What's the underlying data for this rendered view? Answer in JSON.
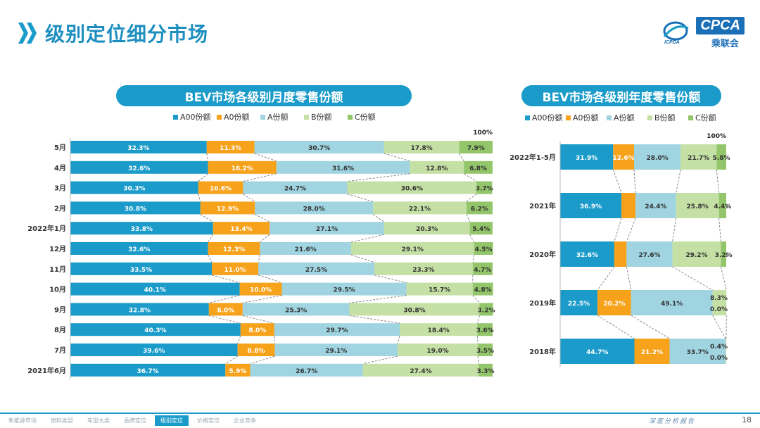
{
  "page": {
    "title": "级别定位细分市场",
    "logo_text": "CPCA",
    "logo_sub": "乘联会",
    "logo_sub2": "ICPDA",
    "report_label": "深度分析报告",
    "page_number": "18"
  },
  "nav": {
    "items": [
      "新能源市场",
      "燃料类型",
      "车型大类",
      "品牌定位",
      "级别定位",
      "价格定位",
      "企业竞争"
    ],
    "active_index": 4
  },
  "colors": {
    "title_blue": "#1d8fbf",
    "accent": "#1a9bc9",
    "series": [
      "#1a9bc9",
      "#f7a21b",
      "#9fd4e0",
      "#c5e0a5",
      "#93c66a"
    ]
  },
  "chart_data": [
    {
      "type": "bar",
      "orientation": "horizontal",
      "stacked": "percent",
      "title": "BEV市场各级别月度零售份额",
      "legend": [
        "A00份额",
        "A0份额",
        "A份额",
        "B份额",
        "C份额"
      ],
      "legend_position": "top",
      "total_label": "100%",
      "categories": [
        "5月",
        "4月",
        "3月",
        "2月",
        "2022年1月",
        "12月",
        "11月",
        "10月",
        "9月",
        "8月",
        "7月",
        "2021年6月"
      ],
      "series": [
        {
          "name": "A00份额",
          "values": [
            32.3,
            32.6,
            30.3,
            30.8,
            33.8,
            32.6,
            33.5,
            40.1,
            32.8,
            40.3,
            39.6,
            36.7
          ]
        },
        {
          "name": "A0份额",
          "values": [
            11.3,
            16.2,
            10.6,
            12.9,
            13.4,
            12.3,
            11.0,
            10.0,
            8.0,
            8.0,
            8.8,
            5.9
          ]
        },
        {
          "name": "A份额",
          "values": [
            30.7,
            31.6,
            24.7,
            28.0,
            27.1,
            21.6,
            27.5,
            29.5,
            25.3,
            29.7,
            29.1,
            26.7
          ]
        },
        {
          "name": "B份额",
          "values": [
            17.8,
            12.8,
            30.6,
            22.1,
            20.3,
            29.1,
            23.3,
            15.7,
            30.8,
            18.4,
            19.0,
            27.4
          ]
        },
        {
          "name": "C份额",
          "values": [
            7.9,
            6.8,
            3.7,
            6.2,
            5.4,
            4.5,
            4.7,
            4.8,
            3.2,
            3.6,
            3.5,
            3.3
          ]
        }
      ],
      "labels": [
        [
          "32.3%",
          "11.3%",
          "30.7%",
          "17.8%",
          "7.9%"
        ],
        [
          "32.6%",
          "16.2%",
          "31.6%",
          "12.8%",
          "6.8%"
        ],
        [
          "30.3%",
          "10.6%",
          "24.7%",
          "30.6%",
          "3.7%"
        ],
        [
          "30.8%",
          "12.9%",
          "28.0%",
          "22.1%",
          "6.2%"
        ],
        [
          "33.8%",
          "13.4%",
          "27.1%",
          "20.3%",
          "5.4%"
        ],
        [
          "32.6%",
          "12.3%",
          "21.6%",
          "29.1%",
          "4.5%"
        ],
        [
          "33.5%",
          "11.0%",
          "27.5%",
          "23.3%",
          "4.7%"
        ],
        [
          "40.1%",
          "10.0%",
          "29.5%",
          "15.7%",
          "4.8%"
        ],
        [
          "32.8%",
          "8.0%",
          "25.3%",
          "30.8%",
          "3.2%"
        ],
        [
          "40.3%",
          "8.0%",
          "29.7%",
          "18.4%",
          "3.6%"
        ],
        [
          "39.6%",
          "8.8%",
          "29.1%",
          "19.0%",
          "3.5%"
        ],
        [
          "36.7%",
          "5.9%",
          "26.7%",
          "27.4%",
          "3.3%"
        ]
      ]
    },
    {
      "type": "bar",
      "orientation": "horizontal",
      "stacked": "percent",
      "title": "BEV市场各级别年度零售份额",
      "legend": [
        "A00份额",
        "A0份额",
        "A份额",
        "B份额",
        "C份额"
      ],
      "legend_position": "top",
      "total_label": "100%",
      "categories": [
        "2022年1-5月",
        "2021年",
        "2020年",
        "2019年",
        "2018年"
      ],
      "series": [
        {
          "name": "A00份额",
          "values": [
            31.9,
            36.9,
            32.6,
            22.5,
            44.7
          ]
        },
        {
          "name": "A0份额",
          "values": [
            12.6,
            8.5,
            7.4,
            20.2,
            21.2
          ]
        },
        {
          "name": "A份额",
          "values": [
            28.0,
            24.4,
            27.6,
            49.1,
            33.7
          ]
        },
        {
          "name": "B份额",
          "values": [
            21.7,
            25.8,
            29.2,
            8.3,
            0.4
          ]
        },
        {
          "name": "C份额",
          "values": [
            5.8,
            4.4,
            3.2,
            0.0,
            0.0
          ]
        }
      ],
      "labels": [
        [
          "31.9%",
          "12.6%",
          "28.0%",
          "21.7%",
          "5.8%"
        ],
        [
          "36.9%",
          "8.5%",
          "24.4%",
          "25.8%",
          "4.4%"
        ],
        [
          "32.6%",
          "7.4%",
          "27.6%",
          "29.2%",
          "3.2%"
        ],
        [
          "22.5%",
          "20.2%",
          "49.1%",
          "8.3%",
          "0.0%"
        ],
        [
          "44.7%",
          "21.2%",
          "33.7%",
          "0.4%",
          "0.0%"
        ]
      ]
    }
  ]
}
